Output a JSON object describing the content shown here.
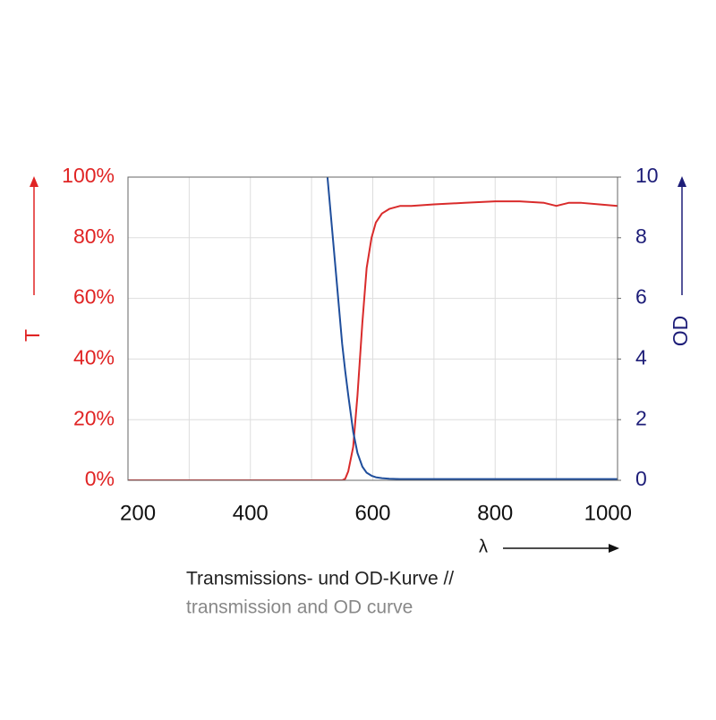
{
  "chart_data": {
    "type": "line",
    "x_label": "λ",
    "y_label": "T",
    "y2_label": "OD",
    "caption": [
      "Transmissions- und OD-Kurve //",
      "transmission and OD curve"
    ],
    "x": [
      200,
      500,
      526,
      540,
      550,
      555,
      560,
      568,
      575,
      583,
      590,
      598,
      605,
      615,
      627,
      645,
      663,
      700,
      750,
      800,
      840,
      880,
      900,
      920,
      941,
      970,
      1000
    ],
    "series": [
      {
        "name": "T",
        "color": "#d92b2b",
        "values": [
          0,
          0,
          0,
          0,
          0,
          0.5,
          3,
          11,
          28,
          52,
          70,
          80,
          85,
          88,
          89.5,
          90.5,
          90.5,
          91,
          91.5,
          92,
          92,
          91.5,
          90.5,
          91.5,
          91.5,
          91,
          90.5
        ]
      },
      {
        "name": "OD",
        "color": "#1f4e9c",
        "axis": "y2",
        "values": [
          null,
          null,
          10,
          6.8,
          4.5,
          3.6,
          2.8,
          1.6,
          0.9,
          0.45,
          0.25,
          0.15,
          0.1,
          0.07,
          0.05,
          0.04,
          0.04,
          0.04,
          0.04,
          0.04,
          0.04,
          0.04,
          0.04,
          0.04,
          0.04,
          0.04,
          0.04
        ]
      }
    ],
    "xlim": [
      200,
      1000
    ],
    "xticks": [
      200,
      400,
      600,
      800,
      1000
    ],
    "xminor": [
      300,
      500,
      700,
      900
    ],
    "ylim": [
      0,
      100
    ],
    "yticks": [
      {
        "value": 0,
        "label": "0%"
      },
      {
        "value": 20,
        "label": "20%"
      },
      {
        "value": 40,
        "label": "40%"
      },
      {
        "value": 60,
        "label": "60%"
      },
      {
        "value": 80,
        "label": "80%"
      },
      {
        "value": 100,
        "label": "100%"
      }
    ],
    "y2lim": [
      0,
      10
    ],
    "y2ticks": [
      0,
      2,
      4,
      6,
      8,
      10
    ],
    "grid": true
  }
}
